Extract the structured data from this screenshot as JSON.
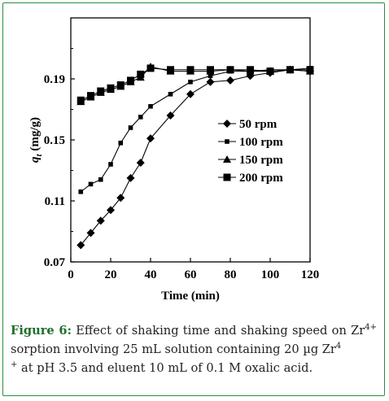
{
  "figure": {
    "caption_label": "Figure 6:",
    "caption_parts": [
      " Effect of shaking time and shaking speed on Zr",
      "4+",
      " sorption involving 25 mL solution containing 20 µg Zr",
      "4",
      " ",
      "+",
      " at pH 3.5 and eluent 10 mL of 0.1 M oxalic acid."
    ]
  },
  "colors": {
    "frame": "#2e8b3e",
    "caption_label": "#1f6e2c",
    "series": "#000000"
  },
  "chart_data": {
    "type": "line",
    "xlabel": "Time (min)",
    "ylabel_parts": {
      "var": "q",
      "sub": "t",
      "unit": " (mg/g)"
    },
    "xlim": [
      0,
      120
    ],
    "ylim": [
      0.07,
      0.23
    ],
    "xticks": [
      "0",
      "20",
      "40",
      "60",
      "80",
      "100",
      "120"
    ],
    "yticks": [
      "0.07",
      "0.11",
      "0.15",
      "0.19"
    ],
    "ytick_values": [
      0.07,
      0.11,
      0.15,
      0.19
    ],
    "xtick_values": [
      0,
      20,
      40,
      60,
      80,
      100,
      120
    ],
    "grid": false,
    "legend_position": "right",
    "series": [
      {
        "name": "50 rpm",
        "marker": "diamond",
        "x": [
          5,
          10,
          15,
          20,
          25,
          30,
          35,
          40,
          50,
          60,
          70,
          80,
          90,
          100,
          110,
          120
        ],
        "y": [
          0.081,
          0.089,
          0.097,
          0.104,
          0.112,
          0.125,
          0.135,
          0.151,
          0.166,
          0.18,
          0.188,
          0.189,
          0.192,
          0.194,
          0.196,
          0.195
        ]
      },
      {
        "name": "100 rpm",
        "marker": "small-square",
        "x": [
          5,
          10,
          15,
          20,
          25,
          30,
          35,
          40,
          50,
          60,
          70,
          80,
          90,
          100,
          110,
          120
        ],
        "y": [
          0.116,
          0.121,
          0.124,
          0.134,
          0.148,
          0.158,
          0.165,
          0.172,
          0.18,
          0.188,
          0.192,
          0.195,
          0.195,
          0.196,
          0.196,
          0.197
        ]
      },
      {
        "name": "150 rpm",
        "marker": "triangle",
        "x": [
          5,
          10,
          15,
          20,
          25,
          30,
          35,
          40,
          50,
          60,
          70,
          80,
          90,
          100,
          110,
          120
        ],
        "y": [
          0.175,
          0.178,
          0.181,
          0.183,
          0.185,
          0.188,
          0.191,
          0.198,
          0.195,
          0.195,
          0.195,
          0.196,
          0.195,
          0.195,
          0.196,
          0.195
        ]
      },
      {
        "name": "200 rpm",
        "marker": "square",
        "x": [
          5,
          10,
          15,
          20,
          25,
          30,
          35,
          40,
          50,
          60,
          70,
          80,
          90,
          100,
          110,
          120
        ],
        "y": [
          0.176,
          0.179,
          0.182,
          0.184,
          0.186,
          0.189,
          0.193,
          0.197,
          0.196,
          0.196,
          0.196,
          0.196,
          0.196,
          0.195,
          0.196,
          0.196
        ]
      }
    ]
  }
}
